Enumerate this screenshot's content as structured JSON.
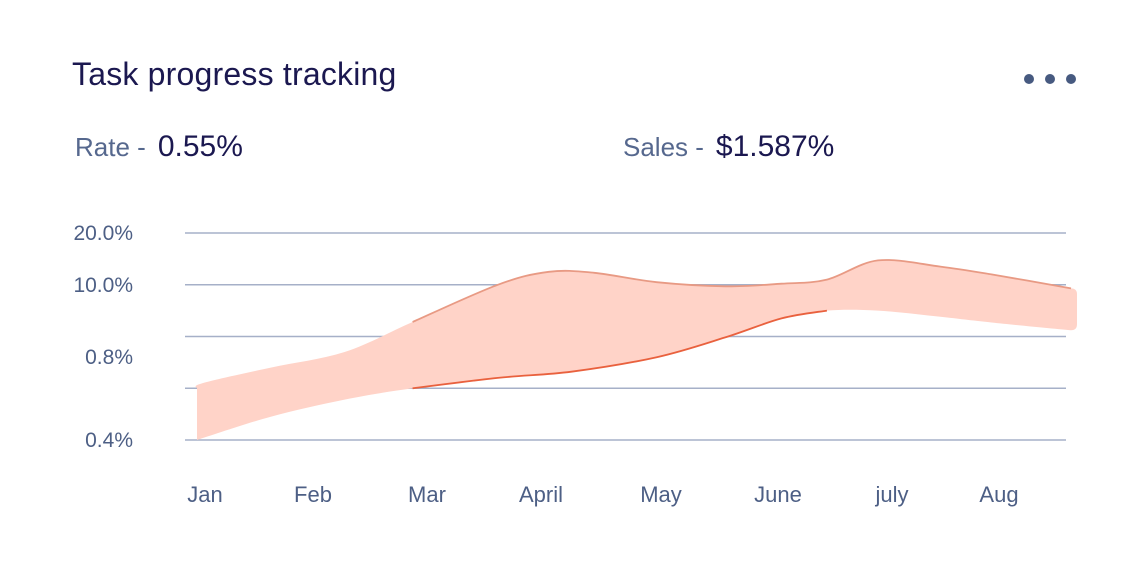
{
  "card": {
    "title": "Task progress tracking",
    "more_icon": "more-horizontal-icon"
  },
  "stats": {
    "rate_label": "Rate -",
    "rate_value": "0.55%",
    "sales_label": "Sales -",
    "sales_value": "$1.587%"
  },
  "chart_data": {
    "type": "area",
    "title": "",
    "xlabel": "",
    "ylabel": "",
    "categories": [
      "Jan",
      "Feb",
      "Mar",
      "April",
      "May",
      "June",
      "july",
      "Aug"
    ],
    "y_ticks": [
      "20.0%",
      "10.0%",
      "0.8%",
      "0.4%"
    ],
    "y_tick_positions": [
      4,
      3,
      1.6,
      0
    ],
    "ylim": [
      0,
      4
    ],
    "x_range": [
      0,
      7.7
    ],
    "grid": true,
    "legend": "none",
    "colors": {
      "band_fill": "#ffd3c8",
      "upper_line": "#e89a84",
      "lower_line": "#e9613e",
      "grid": "#a6b0c8"
    },
    "series": [
      {
        "name": "upper",
        "x": [
          0,
          0.05,
          0.65,
          1.3,
          1.9,
          2.65,
          3.1,
          3.5,
          4.05,
          4.65,
          5.15,
          5.55,
          6.0,
          6.55,
          7.0,
          7.7
        ],
        "values": [
          1.0,
          1.1,
          1.4,
          1.7,
          2.28,
          3.0,
          3.25,
          3.23,
          3.05,
          2.97,
          3.02,
          3.1,
          3.47,
          3.35,
          3.2,
          2.93
        ]
      },
      {
        "name": "lower",
        "x": [
          0,
          0.65,
          1.3,
          1.9,
          2.65,
          3.3,
          4.05,
          4.65,
          5.15,
          5.55,
          6.0,
          6.55,
          7.0,
          7.7
        ],
        "values": [
          0.0,
          0.45,
          0.78,
          1.0,
          1.2,
          1.32,
          1.6,
          1.98,
          2.35,
          2.5,
          2.5,
          2.38,
          2.27,
          2.12
        ]
      }
    ]
  }
}
